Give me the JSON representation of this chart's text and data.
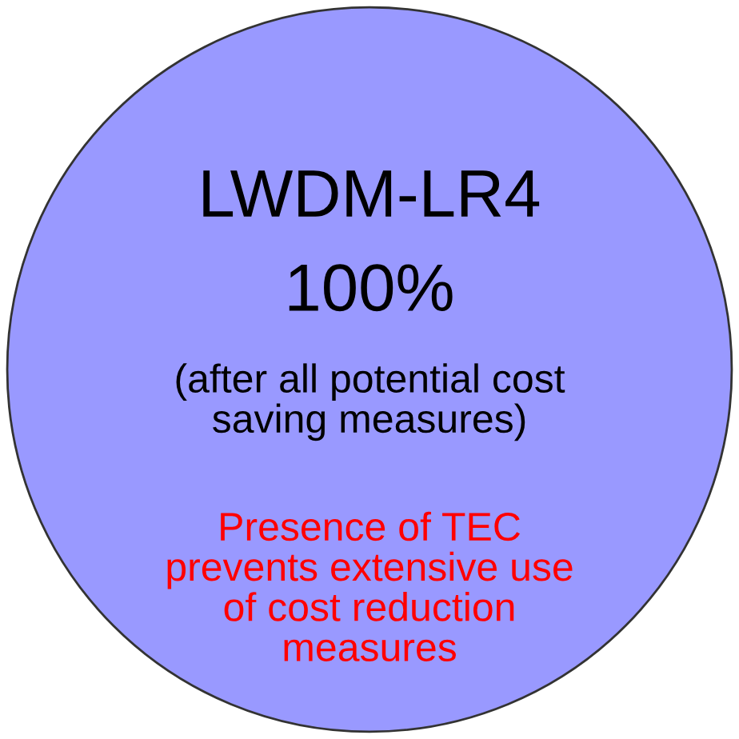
{
  "chart_data": {
    "type": "pie",
    "categories": [
      "LWDM-LR4"
    ],
    "values": [
      100
    ],
    "colors": [
      "#9999ff"
    ],
    "value_labels": [
      "100%"
    ],
    "annotations": [
      "(after all potential cost\nsaving measures)",
      "Presence of TEC\nprevents extensive use\nof cost reduction\nmeasures"
    ]
  }
}
